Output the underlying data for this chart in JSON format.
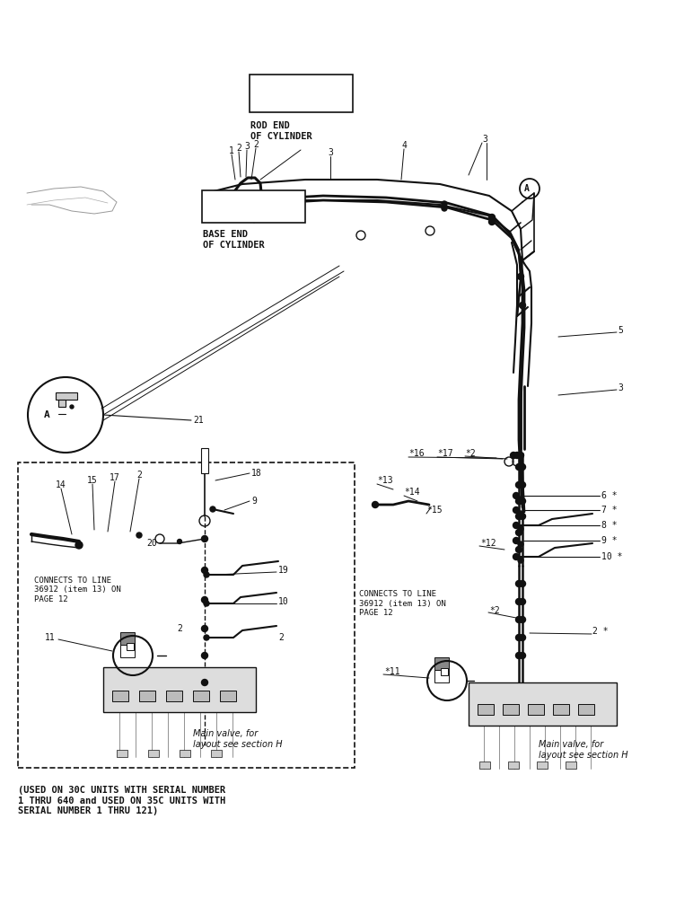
{
  "bg_color": "#ffffff",
  "fg_color": "#111111",
  "rod_end_label": "ROD END\nOF CYLINDER",
  "base_end_label": "BASE END\nOF CYLINDER",
  "main_valve_label": "Main valve, for\nlayout see section H",
  "connects_label": "CONNECTS TO LINE\n36912 (item 13) ON\nPAGE 12",
  "bottom_text": "(USED ON 30C UNITS WITH SERIAL NUMBER\n1 THRU 640 and USED ON 35C UNITS WITH\nSERIAL NUMBER 1 THRU 121)",
  "fig_width": 7.72,
  "fig_height": 10.0
}
